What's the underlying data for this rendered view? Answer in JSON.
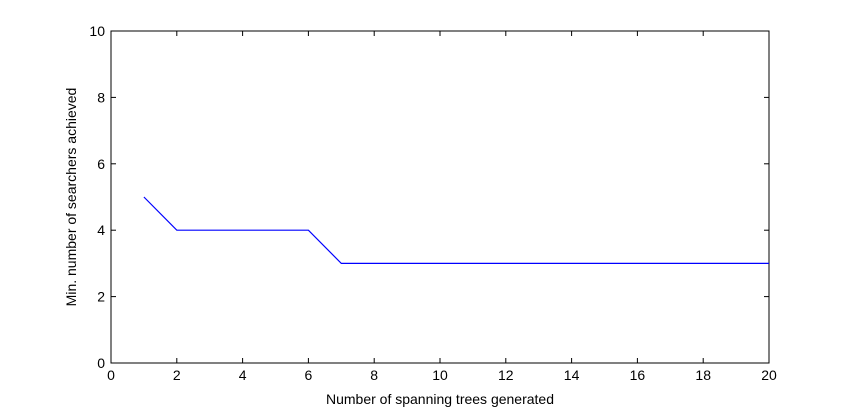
{
  "chart_data": {
    "type": "line",
    "title": "",
    "xlabel": "Number of spanning trees generated",
    "ylabel": "Min. number of searchers achieved",
    "xlim": [
      0,
      20
    ],
    "ylim": [
      0,
      10
    ],
    "xticks": [
      0,
      2,
      4,
      6,
      8,
      10,
      12,
      14,
      16,
      18,
      20
    ],
    "yticks": [
      0,
      2,
      4,
      6,
      8,
      10
    ],
    "grid": false,
    "series": [
      {
        "color": "#0000ff",
        "x": [
          1,
          2,
          3,
          4,
          5,
          6,
          7,
          8,
          9,
          10,
          11,
          12,
          13,
          14,
          15,
          16,
          17,
          18,
          19,
          20
        ],
        "y": [
          5,
          4,
          4,
          4,
          4,
          4,
          3,
          3,
          3,
          3,
          3,
          3,
          3,
          3,
          3,
          3,
          3,
          3,
          3,
          3
        ]
      }
    ]
  }
}
